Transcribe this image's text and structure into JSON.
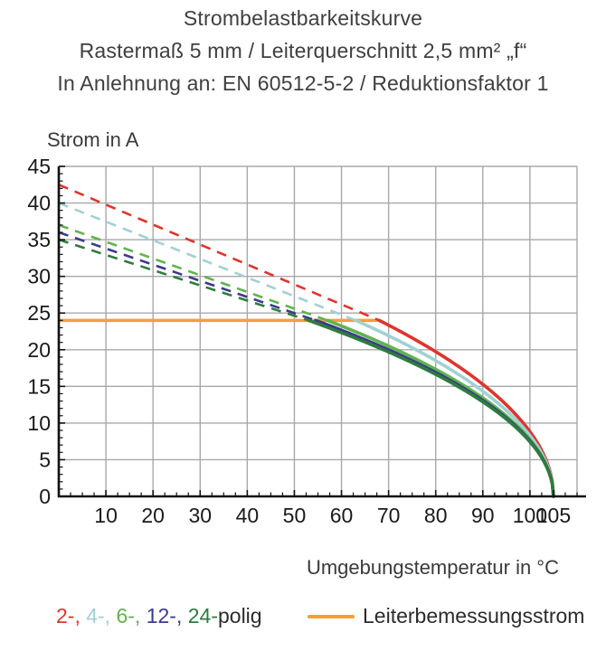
{
  "title": {
    "line1": "Strombelastbarkeitskurve",
    "line2": "Rastermaß 5 mm / Leiterquerschnitt 2,5 mm² „f“",
    "line3": "In Anlehnung an: EN 60512-5-2 / Reduktionsfaktor 1"
  },
  "chart_data": {
    "type": "line",
    "title": "Strombelastbarkeitskurve",
    "ylabel": "Strom in A",
    "xlabel": "Umgebungstemperatur in °C",
    "xlim": [
      0,
      110
    ],
    "ylim": [
      0,
      45
    ],
    "x_ticks": [
      10,
      20,
      30,
      40,
      50,
      60,
      70,
      80,
      90,
      100,
      105
    ],
    "y_ticks": [
      0,
      5,
      10,
      15,
      20,
      25,
      30,
      35,
      40,
      45
    ],
    "x_minor_step": 2.5,
    "y_minor_step": 1,
    "grid": true,
    "grid_color": "#a8a8a8",
    "axis_color": "#111111",
    "series": [
      {
        "name": "2-polig",
        "color": "#E0342B",
        "style": "dashed-then-solid",
        "start_current_a": 42.5,
        "knee_temp_c": 68,
        "end_temp_c": 105,
        "current_at_knee_a": 24
      },
      {
        "name": "4-polig",
        "color": "#9FD2D4",
        "style": "dashed-then-solid",
        "start_current_a": 40,
        "knee_temp_c": 63,
        "end_temp_c": 105,
        "current_at_knee_a": 24
      },
      {
        "name": "6-polig",
        "color": "#5FB44D",
        "style": "dashed-then-solid",
        "start_current_a": 37,
        "knee_temp_c": 57,
        "end_temp_c": 105,
        "current_at_knee_a": 24
      },
      {
        "name": "12-polig",
        "color": "#3A3A8E",
        "style": "dashed-then-solid",
        "start_current_a": 36,
        "knee_temp_c": 54.5,
        "end_temp_c": 105,
        "current_at_knee_a": 24
      },
      {
        "name": "24-polig",
        "color": "#2E7C3D",
        "style": "dashed-then-solid",
        "start_current_a": 35,
        "knee_temp_c": 53,
        "end_temp_c": 105,
        "current_at_knee_a": 24
      }
    ],
    "reference_line": {
      "label": "Leiterbemessungsstrom",
      "value_a": 24,
      "from_temp_c": 0,
      "to_temp_c": 68,
      "color": "#F59E38"
    }
  },
  "legend": {
    "series_segments": [
      {
        "text": "2-,",
        "color": "#E0342B"
      },
      {
        "text": " 4-,",
        "color": "#9FD2D4"
      },
      {
        "text": " 6-,",
        "color": "#5FB44D"
      },
      {
        "text": " 12-,",
        "color": "#3A3A8E"
      },
      {
        "text": " 24-",
        "color": "#2E7C3D"
      },
      {
        "text": "polig",
        "color": "#2B2B2B"
      }
    ],
    "reference_label": "Leiterbemessungsstrom"
  }
}
